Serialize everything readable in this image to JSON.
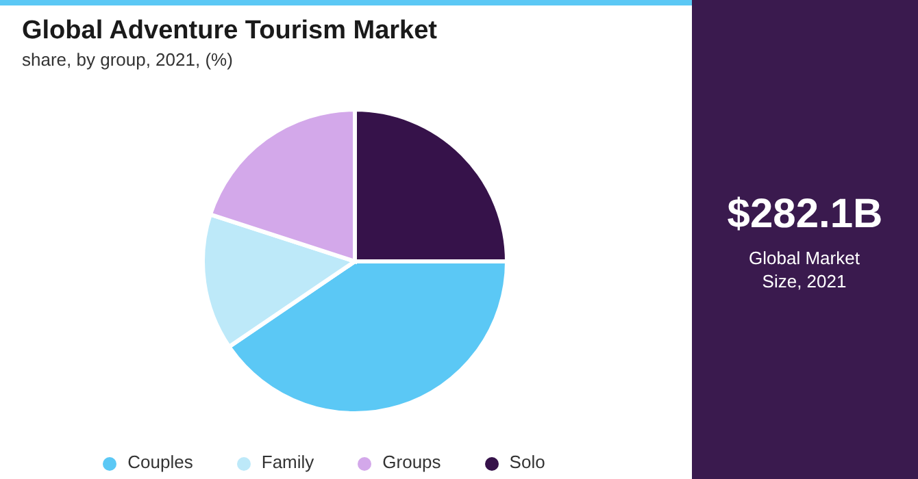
{
  "chart_data": {
    "type": "pie",
    "title": "Global Adventure Tourism Market",
    "subtitle": "share, by group, 2021, (%)",
    "categories": [
      "Solo",
      "Couples",
      "Family",
      "Groups"
    ],
    "values": [
      25,
      40.5,
      14.5,
      20
    ],
    "colors": [
      "#36124a",
      "#5bc8f5",
      "#bde9f9",
      "#d3a8ea"
    ],
    "legend": "bottom",
    "annotations": [
      "$282.1B",
      "Global Market Size, 2021"
    ]
  }
}
